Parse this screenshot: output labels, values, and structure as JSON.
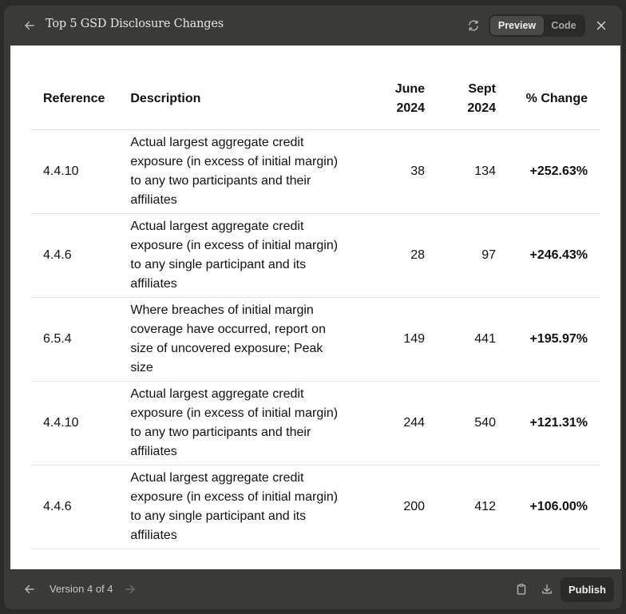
{
  "header": {
    "title": "Top 5 GSD Disclosure Changes",
    "preview_label": "Preview",
    "code_label": "Code"
  },
  "table": {
    "columns": [
      {
        "line1": "Reference",
        "line2": ""
      },
      {
        "line1": "Description",
        "line2": ""
      },
      {
        "line1": "June",
        "line2": "2024"
      },
      {
        "line1": "Sept",
        "line2": "2024"
      },
      {
        "line1": "% Change",
        "line2": ""
      }
    ],
    "rows": [
      {
        "reference": "4.4.10",
        "description": "Actual largest aggregate credit exposure (in excess of initial margin) to any two participants and their affiliates",
        "june": "38",
        "sept": "134",
        "change": "+252.63%"
      },
      {
        "reference": "4.4.6",
        "description": "Actual largest aggregate credit exposure (in excess of initial margin) to any single participant and its affiliates",
        "june": "28",
        "sept": "97",
        "change": "+246.43%"
      },
      {
        "reference": "6.5.4",
        "description": "Where breaches of initial margin coverage have occurred, report on size of uncovered exposure; Peak size",
        "june": "149",
        "sept": "441",
        "change": "+195.97%"
      },
      {
        "reference": "4.4.10",
        "description": "Actual largest aggregate credit exposure (in excess of initial margin) to any two participants and their affiliates",
        "june": "244",
        "sept": "540",
        "change": "+121.31%"
      },
      {
        "reference": "4.4.6",
        "description": "Actual largest aggregate credit exposure (in excess of initial margin) to any single participant and its affiliates",
        "june": "200",
        "sept": "412",
        "change": "+106.00%"
      }
    ]
  },
  "footer": {
    "version_text": "Version 4 of 4",
    "publish_label": "Publish"
  },
  "colors": {
    "chrome": "#3a3a37",
    "content_bg": "#ffffff",
    "text_light": "#e8e6df"
  }
}
